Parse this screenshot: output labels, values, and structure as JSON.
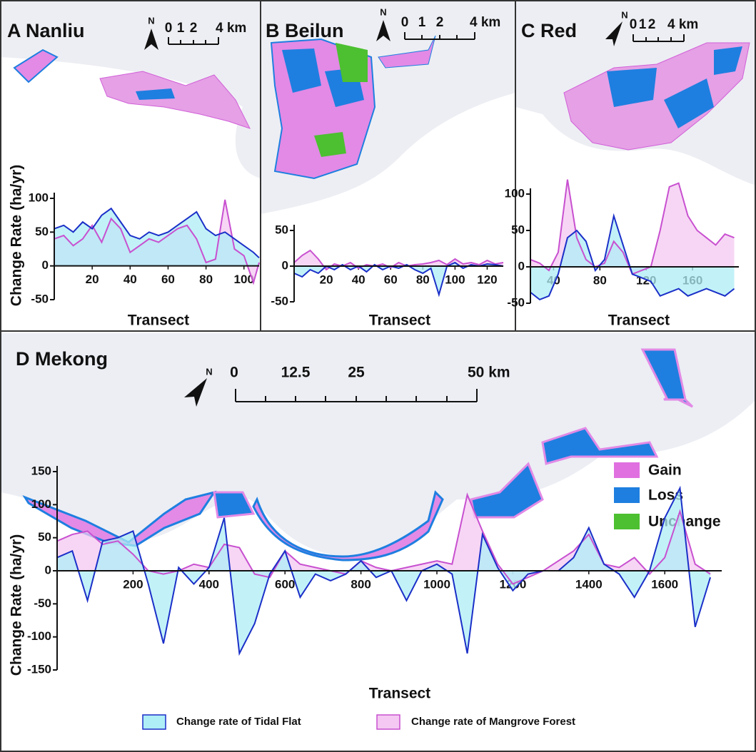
{
  "chart_data": [
    {
      "type": "line",
      "title": "A Nanliu",
      "north_label": "N",
      "scale_labels": [
        "0",
        "1",
        "2",
        "4 km"
      ],
      "xlabel": "Transect",
      "ylabel": "Change Rate (ha/yr)",
      "x": [
        0,
        5,
        10,
        15,
        20,
        25,
        30,
        35,
        40,
        45,
        50,
        55,
        60,
        65,
        70,
        75,
        80,
        85,
        90,
        95,
        100,
        105,
        108
      ],
      "series": [
        {
          "color": "#1b2fc8",
          "fill": "#aeeef6",
          "values": [
            55,
            60,
            50,
            65,
            55,
            75,
            85,
            65,
            45,
            40,
            50,
            45,
            50,
            60,
            70,
            80,
            55,
            45,
            50,
            40,
            30,
            20,
            12
          ]
        },
        {
          "color": "#c850d0",
          "fill": "#f4c8f2",
          "values": [
            40,
            45,
            30,
            40,
            60,
            35,
            70,
            55,
            20,
            30,
            40,
            35,
            45,
            55,
            60,
            40,
            5,
            10,
            98,
            25,
            15,
            -25,
            5
          ]
        }
      ],
      "xlim": [
        0,
        108
      ],
      "ylim": [
        -50,
        100
      ],
      "xticks": [
        20,
        40,
        60,
        80,
        100
      ],
      "yticks": [
        -50,
        0,
        50,
        100
      ]
    },
    {
      "type": "line",
      "title": "B Beilun",
      "north_label": "N",
      "scale_labels": [
        "0",
        "1",
        "2",
        "4 km"
      ],
      "xlabel": "Transect",
      "x": [
        0,
        5,
        10,
        15,
        20,
        25,
        30,
        35,
        40,
        45,
        50,
        55,
        60,
        65,
        70,
        75,
        80,
        85,
        90,
        95,
        100,
        105,
        110,
        115,
        120,
        125,
        130
      ],
      "series": [
        {
          "color": "#1b2fc8",
          "fill": "#aeeef6",
          "values": [
            -10,
            -15,
            -5,
            -10,
            0,
            -5,
            2,
            -5,
            0,
            -8,
            2,
            -5,
            0,
            -3,
            2,
            -5,
            -10,
            -3,
            -40,
            0,
            5,
            -3,
            2,
            0,
            3,
            2,
            0
          ]
        },
        {
          "color": "#c850d0",
          "fill": "#f4c8f2",
          "values": [
            5,
            15,
            22,
            10,
            -5,
            3,
            0,
            5,
            -3,
            2,
            0,
            3,
            -2,
            5,
            0,
            2,
            3,
            5,
            8,
            2,
            10,
            3,
            5,
            2,
            8,
            3,
            5
          ]
        }
      ],
      "xlim": [
        0,
        130
      ],
      "ylim": [
        -50,
        50
      ],
      "xticks": [
        20,
        40,
        60,
        80,
        100,
        120
      ],
      "yticks": [
        -50,
        0,
        50
      ]
    },
    {
      "type": "line",
      "title": "C Red",
      "north_label": "N",
      "scale_labels": [
        "0",
        "1",
        "2",
        "4 km"
      ],
      "xlabel": "Transect",
      "x": [
        20,
        28,
        36,
        44,
        52,
        60,
        68,
        76,
        84,
        92,
        100,
        108,
        116,
        124,
        132,
        140,
        148,
        156,
        164,
        172,
        180,
        188,
        196
      ],
      "series": [
        {
          "color": "#1b2fc8",
          "fill": "#aeeef6",
          "values": [
            -35,
            -45,
            -40,
            -10,
            40,
            50,
            35,
            -5,
            10,
            70,
            30,
            -10,
            -15,
            -20,
            -40,
            -35,
            -30,
            -40,
            -35,
            -30,
            -35,
            -40,
            -30
          ]
        },
        {
          "color": "#c850d0",
          "fill": "#f4c8f2",
          "values": [
            10,
            5,
            -5,
            20,
            120,
            40,
            10,
            0,
            5,
            35,
            20,
            -10,
            -5,
            0,
            50,
            110,
            115,
            70,
            50,
            40,
            30,
            45,
            40
          ]
        }
      ],
      "xlim": [
        20,
        200
      ],
      "ylim": [
        -50,
        100
      ],
      "xticks": [
        40,
        80,
        120,
        160
      ],
      "yticks": [
        -50,
        0,
        50,
        100
      ]
    },
    {
      "type": "line",
      "title": "D Mekong",
      "north_label": "N",
      "scale_labels": [
        "0",
        "12.5",
        "25",
        "50 km"
      ],
      "xlabel": "Transect",
      "ylabel": "Change Rate (ha/yr)",
      "map_legend": [
        {
          "name": "Gain",
          "color": "#e070e0"
        },
        {
          "name": "Loss",
          "color": "#1e7fe0"
        },
        {
          "name": "Unchange",
          "color": "#4cc030"
        }
      ],
      "x": [
        0,
        40,
        80,
        120,
        160,
        200,
        240,
        280,
        320,
        360,
        400,
        440,
        480,
        520,
        560,
        600,
        640,
        680,
        720,
        760,
        800,
        840,
        880,
        920,
        960,
        1000,
        1040,
        1080,
        1120,
        1160,
        1200,
        1240,
        1280,
        1320,
        1360,
        1400,
        1440,
        1480,
        1520,
        1560,
        1600,
        1640,
        1680,
        1720
      ],
      "series": [
        {
          "name": "Change rate of Tidal Flat",
          "color": "#1b2fc8",
          "fill": "#aeeef6",
          "values": [
            20,
            30,
            -45,
            45,
            50,
            60,
            -20,
            -110,
            5,
            -20,
            5,
            80,
            -125,
            -80,
            -5,
            30,
            -40,
            -5,
            -15,
            -5,
            15,
            -10,
            0,
            -45,
            0,
            10,
            -5,
            -125,
            55,
            5,
            -30,
            -5,
            0,
            0,
            20,
            65,
            10,
            -5,
            -40,
            0,
            80,
            125,
            -85,
            -10
          ]
        },
        {
          "name": "Change rate of Mangrove Forest",
          "color": "#c850d0",
          "fill": "#f4c8f2",
          "values": [
            45,
            55,
            60,
            40,
            45,
            25,
            0,
            -5,
            0,
            10,
            5,
            40,
            35,
            -5,
            -10,
            30,
            10,
            5,
            0,
            -5,
            15,
            5,
            0,
            5,
            10,
            15,
            10,
            115,
            60,
            10,
            -20,
            -10,
            0,
            15,
            30,
            55,
            10,
            5,
            20,
            -5,
            20,
            90,
            10,
            -5
          ]
        }
      ],
      "xlim": [
        0,
        1750
      ],
      "ylim": [
        -150,
        150
      ],
      "xticks": [
        200,
        400,
        600,
        800,
        1000,
        1200,
        1400,
        1600
      ],
      "yticks": [
        -150,
        -100,
        -50,
        0,
        50,
        100,
        150
      ]
    }
  ]
}
